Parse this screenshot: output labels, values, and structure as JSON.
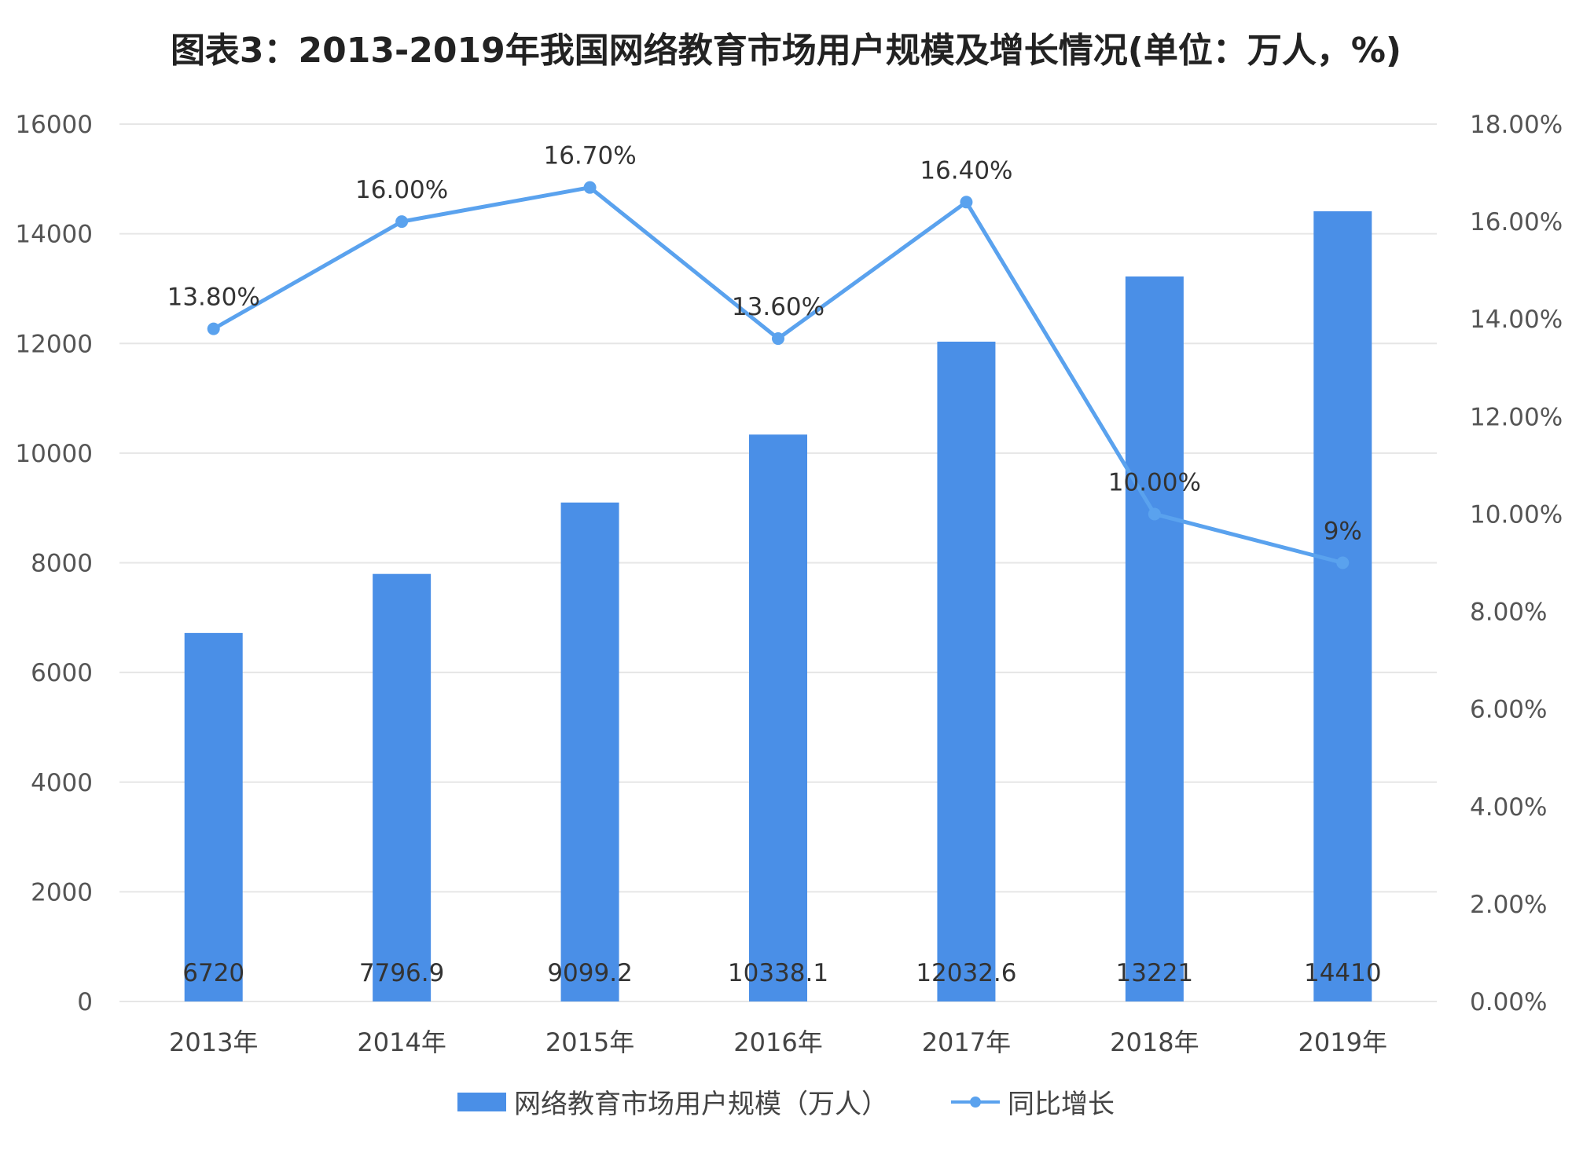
{
  "colors": {
    "bar": "#4a8fe7",
    "line": "#5aa2ee",
    "grid": "#e6e6e6"
  },
  "chart_data": {
    "type": "bar",
    "title": "图表3：2013-2019年我国网络教育市场用户规模及增长情况(单位：万人，%)",
    "categories": [
      "2013年",
      "2014年",
      "2015年",
      "2016年",
      "2017年",
      "2018年",
      "2019年"
    ],
    "series": [
      {
        "name": "网络教育市场用户规模（万人）",
        "type": "bar",
        "axis": "left",
        "values": [
          6720,
          7796.9,
          9099.2,
          10338.1,
          12032.6,
          13221,
          14410
        ],
        "labels": [
          "6720",
          "7796.9",
          "9099.2",
          "10338.1",
          "12032.6",
          "13221",
          "14410"
        ]
      },
      {
        "name": "同比增长",
        "type": "line",
        "axis": "right",
        "values": [
          13.8,
          16.0,
          16.7,
          13.6,
          16.4,
          10.0,
          9.0
        ],
        "labels": [
          "13.80%",
          "16.00%",
          "16.70%",
          "13.60%",
          "16.40%",
          "10.00%",
          "9%"
        ]
      }
    ],
    "y_left": {
      "range": [
        0,
        16000
      ],
      "ticks": [
        0,
        2000,
        4000,
        6000,
        8000,
        10000,
        12000,
        14000,
        16000
      ],
      "tick_labels": [
        "0",
        "2000",
        "4000",
        "6000",
        "8000",
        "10000",
        "12000",
        "14000",
        "16000"
      ]
    },
    "y_right": {
      "range": [
        0,
        18
      ],
      "ticks": [
        0,
        2,
        4,
        6,
        8,
        10,
        12,
        14,
        16,
        18
      ],
      "tick_labels": [
        "0.00%",
        "2.00%",
        "4.00%",
        "6.00%",
        "8.00%",
        "10.00%",
        "12.00%",
        "14.00%",
        "16.00%",
        "18.00%"
      ]
    },
    "grid": true,
    "legend": "bottom"
  }
}
